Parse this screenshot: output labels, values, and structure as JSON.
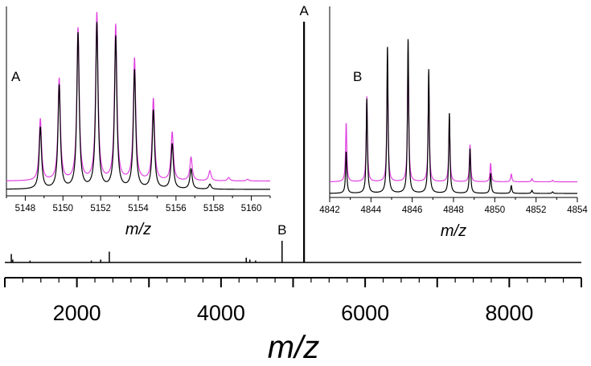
{
  "chart_data": [
    {
      "type": "line",
      "role": "main",
      "xlabel": "m/z",
      "xlim": [
        1000,
        9000
      ],
      "x_ticks": [
        2000,
        4000,
        6000,
        8000
      ],
      "peaks": [
        {
          "x": 1090,
          "h": 0.035
        },
        {
          "x": 1110,
          "h": 0.012
        },
        {
          "x": 1350,
          "h": 0.008
        },
        {
          "x": 2200,
          "h": 0.008
        },
        {
          "x": 2330,
          "h": 0.012
        },
        {
          "x": 2450,
          "h": 0.045
        },
        {
          "x": 4350,
          "h": 0.02
        },
        {
          "x": 4400,
          "h": 0.012
        },
        {
          "x": 4480,
          "h": 0.008
        },
        {
          "x": 4847,
          "h": 0.09
        },
        {
          "x": 5152,
          "h": 1.0
        }
      ],
      "peak_labels": [
        {
          "text": "A",
          "x": 5152
        },
        {
          "text": "B",
          "x": 4847
        }
      ]
    },
    {
      "type": "line",
      "role": "inset",
      "label": "A",
      "xlabel": "m/z",
      "xlim": [
        5147,
        5161
      ],
      "x_ticks": [
        5148,
        5150,
        5152,
        5154,
        5156,
        5158,
        5160
      ],
      "x": [
        5148.8,
        5149.8,
        5150.8,
        5151.8,
        5152.8,
        5153.8,
        5154.8,
        5155.8,
        5156.8,
        5157.8,
        5158.8,
        5159.8
      ],
      "series": [
        {
          "color": "#e040e0",
          "offset": 0.05,
          "values": [
            0.37,
            0.61,
            0.91,
            1.0,
            0.93,
            0.73,
            0.49,
            0.29,
            0.14,
            0.06,
            0.02,
            0.01
          ]
        },
        {
          "color": "#000000",
          "offset": 0.0,
          "values": [
            0.37,
            0.62,
            0.93,
            0.99,
            0.91,
            0.71,
            0.47,
            0.27,
            0.12,
            0.03,
            0.0,
            0.0
          ]
        }
      ]
    },
    {
      "type": "line",
      "role": "inset",
      "label": "B",
      "xlabel": "m/z",
      "xlim": [
        4842,
        4854
      ],
      "x_ticks": [
        4842,
        4844,
        4846,
        4848,
        4850,
        4852,
        4854
      ],
      "x": [
        4842.8,
        4843.8,
        4844.8,
        4845.8,
        4846.8,
        4847.8,
        4848.8,
        4849.8,
        4850.8,
        4851.8,
        4852.8
      ],
      "series": [
        {
          "color": "#e040e0",
          "offset": 0.075,
          "values": [
            0.38,
            0.55,
            0.76,
            0.84,
            0.64,
            0.41,
            0.24,
            0.12,
            0.05,
            0.02,
            0.01
          ]
        },
        {
          "color": "#000000",
          "offset": 0.0,
          "values": [
            0.27,
            0.61,
            0.95,
            1.0,
            0.8,
            0.52,
            0.29,
            0.13,
            0.05,
            0.02,
            0.01
          ]
        }
      ]
    }
  ]
}
